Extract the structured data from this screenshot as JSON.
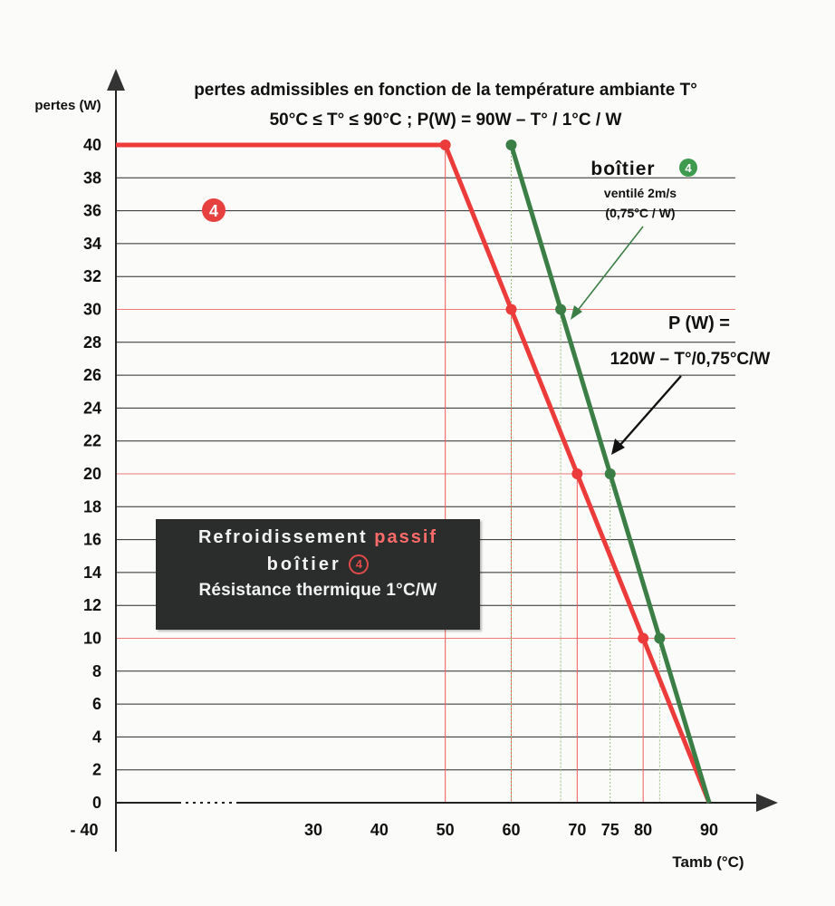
{
  "chart_data": {
    "type": "line",
    "title": "pertes admissibles en fonction de la température ambiante T°",
    "subtitle": "50°C ≤ T° ≤ 90°C ; P(W) = 90W – T° /  1°C / W",
    "ylabel": "pertes (W)",
    "xlabel": "Tamb (°C)",
    "ylim": [
      0,
      40
    ],
    "xlim": [
      -40,
      90
    ],
    "y_ticks": [
      "40",
      "38",
      "36",
      "34",
      "32",
      "30",
      "28",
      "26",
      "24",
      "22",
      "20",
      "18",
      "16",
      "14",
      "12",
      "10",
      "8",
      "6",
      "4",
      "2",
      "0"
    ],
    "x_ticks": [
      "- 40",
      "30",
      "40",
      "50",
      "60",
      "70",
      "75",
      "80",
      "90"
    ],
    "grid": true,
    "series": [
      {
        "name": "4",
        "color": "#ec3b3b",
        "points": [
          [
            -40,
            40
          ],
          [
            50,
            40
          ],
          [
            60,
            30
          ],
          [
            70,
            20
          ],
          [
            80,
            10
          ],
          [
            90,
            0
          ]
        ]
      },
      {
        "name": "boîtier ventilé 2m/s (0,75°C / W)",
        "color": "#3c7f46",
        "points": [
          [
            60,
            40
          ],
          [
            67.5,
            30
          ],
          [
            75,
            20
          ],
          [
            82.5,
            10
          ],
          [
            90,
            0
          ]
        ]
      }
    ],
    "annotations": {
      "red_marker": "4",
      "green_marker": "4",
      "green_title": "boîtier",
      "green_line1": "ventilé 2m/s",
      "green_line2": "(0,75°C / W)",
      "formula_line1": "P (W) =",
      "formula_line2": "120W – T°/0,75°C/W"
    }
  },
  "legend_box": {
    "line1_a": "Refroidissement",
    "line1_b": "passif",
    "line2": "boîtier",
    "line2_marker": "4",
    "line3": "Résistance thermique 1°C/W",
    "bg_color": "#2a2d2b",
    "accent_color": "#ff6b6b"
  }
}
